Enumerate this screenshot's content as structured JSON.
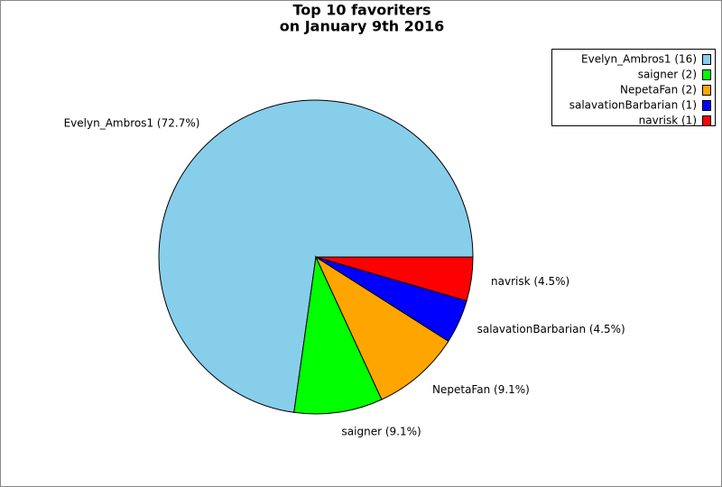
{
  "chart_data": {
    "type": "pie",
    "title": "Top 10 favoriters",
    "subtitle": "on January 9th 2016",
    "categories": [
      "Evelyn_Ambros1 (16)",
      "saigner (2)",
      "NepetaFan (2)",
      "salavationBarbarian (1)",
      "navrisk (1)"
    ],
    "values": [
      72.7,
      9.1,
      9.1,
      4.5,
      4.5
    ],
    "value_labels": [
      "Evelyn_Ambros1 (72.7%)",
      "saigner (9.1%)",
      "NepetaFan (9.1%)",
      "salavationBarbarian (4.5%)",
      "navrisk (4.5%)"
    ],
    "colors": [
      "#87ceeb",
      "#00ff00",
      "#ffa500",
      "#0000ff",
      "#ff0000"
    ],
    "legend": "top-right"
  }
}
